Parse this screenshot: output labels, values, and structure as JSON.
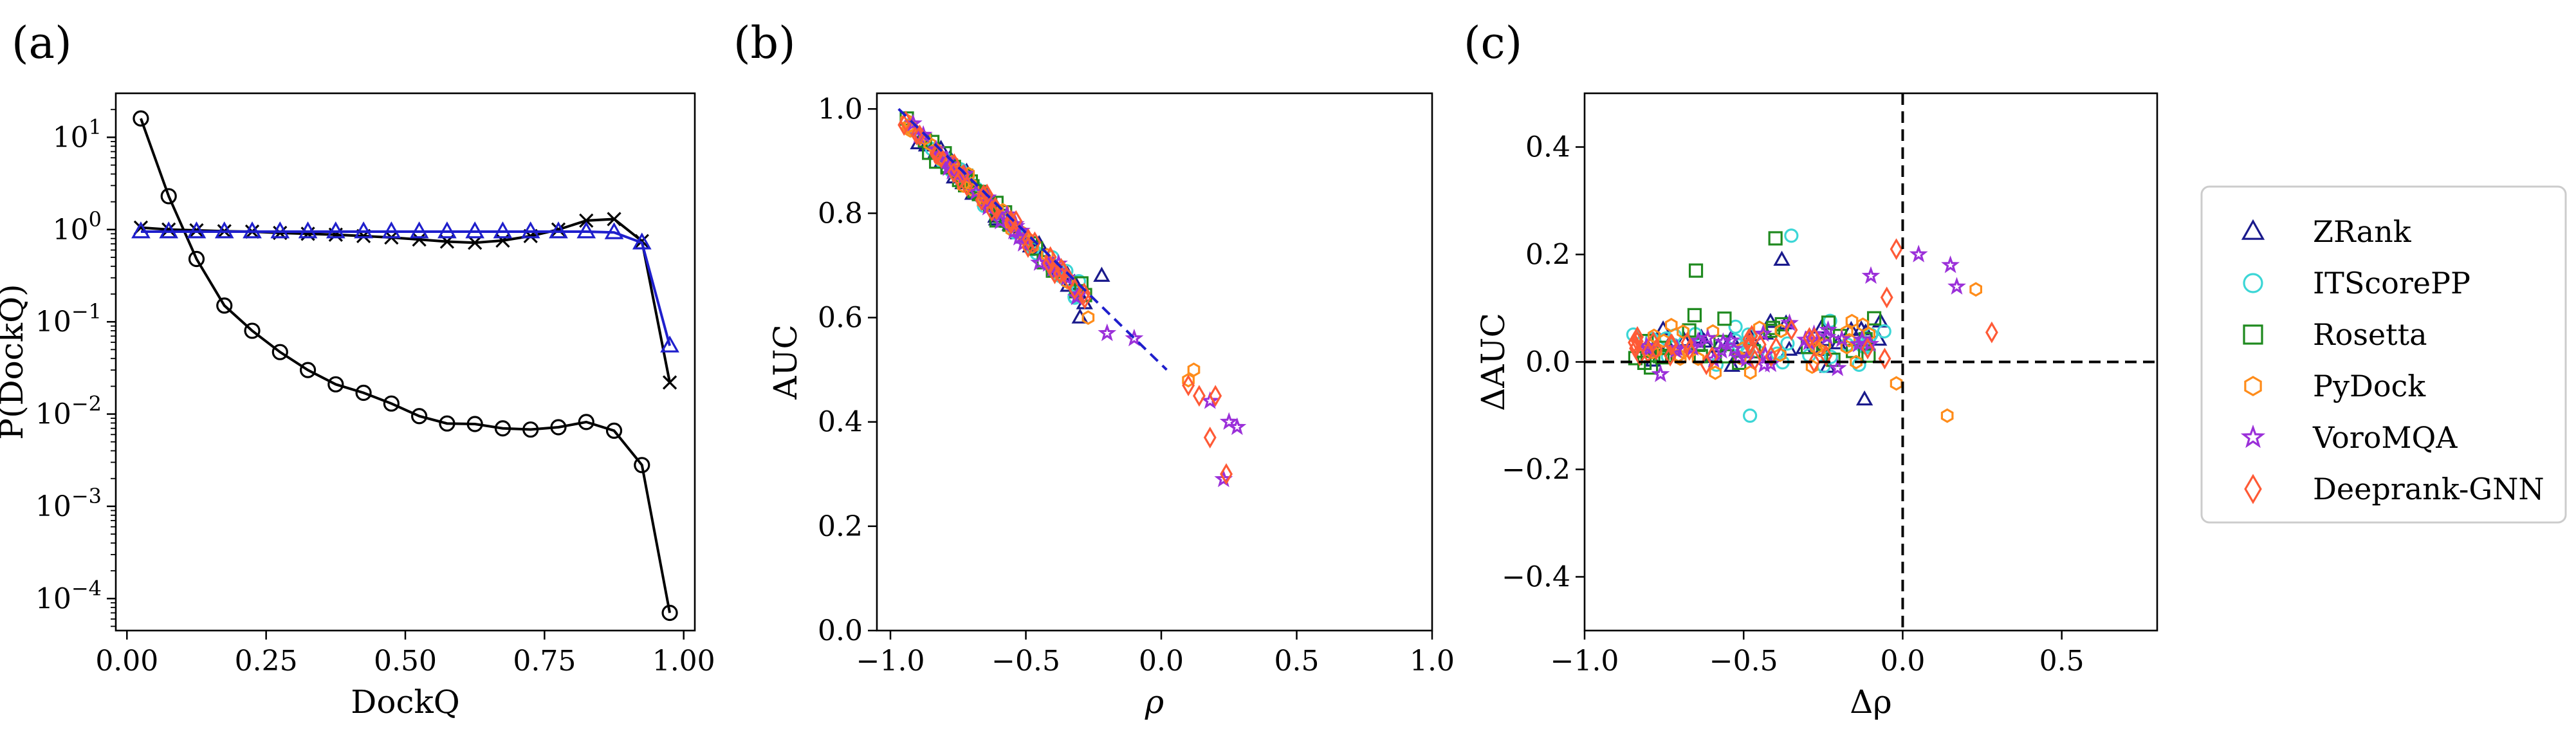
{
  "chart_data": [
    {
      "id": "a",
      "panel_label": "(a)",
      "type": "line",
      "xlabel": "DockQ",
      "ylabel": "P(DockQ)",
      "yscale": "log",
      "xlim": [
        -0.02,
        1.02
      ],
      "ylim": [
        4.5e-05,
        30
      ],
      "xticks": [
        0.0,
        0.25,
        0.5,
        0.75,
        1.0
      ],
      "xtick_labels": [
        "0.00",
        "0.25",
        "0.50",
        "0.75",
        "1.00"
      ],
      "yticks": [
        0.0001,
        0.001,
        0.01,
        0.1,
        1,
        10
      ],
      "ytick_labels": [
        [
          "10",
          "−4"
        ],
        [
          "10",
          "−3"
        ],
        [
          "10",
          "−2"
        ],
        [
          "10",
          "−1"
        ],
        [
          "10",
          "0"
        ],
        [
          "10",
          "1"
        ]
      ],
      "series": [
        {
          "color": "#000000",
          "marker": "circle",
          "x": [
            0.025,
            0.075,
            0.125,
            0.175,
            0.225,
            0.275,
            0.325,
            0.375,
            0.425,
            0.475,
            0.525,
            0.575,
            0.625,
            0.675,
            0.725,
            0.775,
            0.825,
            0.875,
            0.925,
            0.975
          ],
          "y": [
            16,
            2.3,
            0.48,
            0.15,
            0.08,
            0.047,
            0.03,
            0.021,
            0.017,
            0.013,
            0.0095,
            0.0079,
            0.0078,
            0.007,
            0.0068,
            0.0072,
            0.0082,
            0.0066,
            0.0028,
            7e-05
          ]
        },
        {
          "color": "#000000",
          "marker": "x",
          "x": [
            0.025,
            0.075,
            0.125,
            0.175,
            0.225,
            0.275,
            0.325,
            0.375,
            0.425,
            0.475,
            0.525,
            0.575,
            0.625,
            0.675,
            0.725,
            0.775,
            0.825,
            0.875,
            0.925,
            0.975
          ],
          "y": [
            1.05,
            1.0,
            0.98,
            0.96,
            0.95,
            0.92,
            0.9,
            0.88,
            0.85,
            0.82,
            0.78,
            0.74,
            0.72,
            0.76,
            0.85,
            1.0,
            1.25,
            1.3,
            0.75,
            0.022
          ]
        },
        {
          "color": "#1f1fcc",
          "marker": "triangle",
          "x": [
            0.025,
            0.075,
            0.125,
            0.175,
            0.225,
            0.275,
            0.325,
            0.375,
            0.425,
            0.475,
            0.525,
            0.575,
            0.625,
            0.675,
            0.725,
            0.775,
            0.825,
            0.875,
            0.925,
            0.975
          ],
          "y": [
            0.95,
            0.95,
            0.95,
            0.95,
            0.95,
            0.95,
            0.95,
            0.95,
            0.95,
            0.95,
            0.95,
            0.95,
            0.95,
            0.95,
            0.95,
            0.95,
            0.95,
            0.93,
            0.72,
            0.055
          ]
        }
      ]
    },
    {
      "id": "b",
      "panel_label": "(b)",
      "type": "scatter",
      "xlabel": "ρ",
      "ylabel": "AUC",
      "xlim": [
        -1.05,
        1.0
      ],
      "ylim": [
        0.0,
        1.03
      ],
      "xticks": [
        -1.0,
        -0.5,
        0.0,
        0.5,
        1.0
      ],
      "xtick_labels": [
        "−1.0",
        "−0.5",
        "0.0",
        "0.5",
        "1.0"
      ],
      "yticks": [
        0.0,
        0.2,
        0.4,
        0.6,
        0.8,
        1.0
      ],
      "ytick_labels": [
        "0.0",
        "0.2",
        "0.4",
        "0.6",
        "0.8",
        "1.0"
      ],
      "fit_line": {
        "x": [
          -0.97,
          0.02
        ],
        "y": [
          1.0,
          0.5
        ],
        "color": "#1f1fcc",
        "style": "dashed"
      },
      "cloud": {
        "x_start": -0.95,
        "x_end": -0.28,
        "slope": -0.5,
        "intercept": 0.5,
        "noise": 0.025
      },
      "series": [
        {
          "name": "ZRank",
          "marker": "triangle",
          "color": "#1a1a8c",
          "count": 34,
          "extra": [
            [
              -0.3,
              0.6
            ],
            [
              -0.22,
              0.68
            ]
          ]
        },
        {
          "name": "ITScorePP",
          "marker": "circle",
          "color": "#3cd6d6",
          "count": 34,
          "extra": [
            [
              -0.32,
              0.64
            ]
          ]
        },
        {
          "name": "Rosetta",
          "marker": "square",
          "color": "#1f8a1f",
          "count": 34,
          "extra": [
            [
              -0.4,
              0.69
            ]
          ]
        },
        {
          "name": "PyDock",
          "marker": "hexagon",
          "color": "#ff8c1a",
          "count": 34,
          "extra": [
            [
              -0.27,
              0.6
            ],
            [
              0.1,
              0.48
            ],
            [
              0.12,
              0.5
            ]
          ]
        },
        {
          "name": "VoroMQA",
          "marker": "star",
          "color": "#9b30d9",
          "count": 34,
          "extra": [
            [
              -0.2,
              0.57
            ],
            [
              -0.1,
              0.56
            ],
            [
              0.18,
              0.44
            ],
            [
              0.25,
              0.4
            ],
            [
              0.28,
              0.39
            ],
            [
              0.23,
              0.29
            ]
          ]
        },
        {
          "name": "Deeprank-GNN",
          "marker": "diamond",
          "color": "#ff5a36",
          "count": 34,
          "extra": [
            [
              0.1,
              0.47
            ],
            [
              0.14,
              0.45
            ],
            [
              0.2,
              0.45
            ],
            [
              0.18,
              0.37
            ],
            [
              0.24,
              0.3
            ]
          ]
        }
      ]
    },
    {
      "id": "c",
      "panel_label": "(c)",
      "type": "scatter",
      "xlabel": "Δρ",
      "ylabel": "ΔAUC",
      "xlim": [
        -1.0,
        0.8
      ],
      "ylim": [
        -0.5,
        0.5
      ],
      "xticks": [
        -1.0,
        -0.5,
        0.0,
        0.5
      ],
      "xtick_labels": [
        "−1.0",
        "−0.5",
        "0.0",
        "0.5"
      ],
      "yticks": [
        -0.4,
        -0.2,
        0.0,
        0.2,
        0.4
      ],
      "ytick_labels": [
        "−0.4",
        "−0.2",
        "0.0",
        "0.2",
        "0.4"
      ],
      "reference_lines": {
        "x": 0.0,
        "y": 0.0,
        "color": "#000000",
        "style": "dashed"
      },
      "cloud": {
        "x_start": -0.85,
        "x_end": -0.05,
        "y_min": -0.1,
        "y_max": 0.17
      },
      "series": [
        {
          "name": "ZRank",
          "marker": "triangle",
          "color": "#1a1a8c",
          "count": 30,
          "extra": [
            [
              -0.38,
              0.19
            ],
            [
              -0.12,
              -0.07
            ]
          ]
        },
        {
          "name": "ITScorePP",
          "marker": "circle",
          "color": "#3cd6d6",
          "count": 30,
          "extra": [
            [
              -0.35,
              0.235
            ],
            [
              -0.48,
              -0.1
            ]
          ]
        },
        {
          "name": "Rosetta",
          "marker": "square",
          "color": "#1f8a1f",
          "count": 30,
          "extra": [
            [
              -0.4,
              0.23
            ],
            [
              -0.65,
              0.17
            ]
          ]
        },
        {
          "name": "PyDock",
          "marker": "hexagon",
          "color": "#ff8c1a",
          "count": 30,
          "extra": [
            [
              0.23,
              0.135
            ],
            [
              0.14,
              -0.1
            ],
            [
              -0.02,
              -0.04
            ]
          ]
        },
        {
          "name": "VoroMQA",
          "marker": "star",
          "color": "#9b30d9",
          "count": 30,
          "extra": [
            [
              0.05,
              0.2
            ],
            [
              0.15,
              0.18
            ],
            [
              0.17,
              0.14
            ],
            [
              -0.1,
              0.16
            ]
          ]
        },
        {
          "name": "Deeprank-GNN",
          "marker": "diamond",
          "color": "#ff5a36",
          "count": 30,
          "extra": [
            [
              0.28,
              0.055
            ],
            [
              -0.02,
              0.21
            ],
            [
              -0.05,
              0.12
            ]
          ]
        }
      ]
    }
  ],
  "legend": {
    "placement": "right",
    "items": [
      {
        "label": "ZRank",
        "marker": "triangle",
        "color": "#1a1a8c"
      },
      {
        "label": "ITScorePP",
        "marker": "circle",
        "color": "#3cd6d6"
      },
      {
        "label": "Rosetta",
        "marker": "square",
        "color": "#1f8a1f"
      },
      {
        "label": "PyDock",
        "marker": "hexagon",
        "color": "#ff8c1a"
      },
      {
        "label": "VoroMQA",
        "marker": "star",
        "color": "#9b30d9"
      },
      {
        "label": "Deeprank-GNN",
        "marker": "diamond",
        "color": "#ff5a36"
      }
    ]
  }
}
